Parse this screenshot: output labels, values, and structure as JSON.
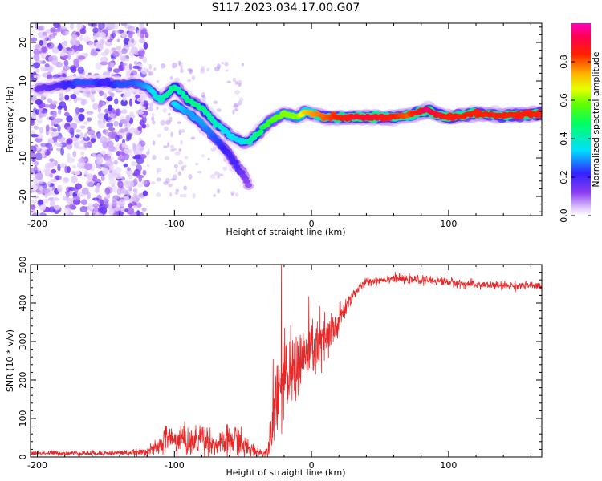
{
  "figure_title": "S117.2023.034.17.00.G07",
  "colors": {
    "snr_line": "#e82828",
    "axes": "#000000"
  },
  "chart_data": [
    {
      "type": "heatmap",
      "xlabel": "Height of straight line (km)",
      "ylabel": "Frequency (Hz)",
      "xlim": [
        -205,
        168
      ],
      "ylim": [
        -25,
        25
      ],
      "x_ticks": [
        -200,
        -100,
        0,
        100
      ],
      "y_ticks": [
        -20,
        -10,
        0,
        10,
        20
      ],
      "colorbar": {
        "label": "Normalized spectral amplitude",
        "range": [
          0,
          1
        ],
        "ticks": [
          "0.0",
          "0.2",
          "0.4",
          "0.6",
          "0.8"
        ],
        "colormap": "rainbow (white-purple-blue-cyan-green-yellow-red-magenta)"
      },
      "ridge": {
        "x": [
          -200,
          -180,
          -170,
          -160,
          -150,
          -140,
          -130,
          -120,
          -110,
          -100,
          -95,
          -90,
          -80,
          -70,
          -60,
          -50,
          -45,
          -40,
          -35,
          -30,
          -20,
          -10,
          -5,
          0,
          10,
          20,
          40,
          60,
          70,
          80,
          85,
          90,
          100,
          110,
          120,
          140,
          168
        ],
        "y": [
          8,
          9,
          9.5,
          9.5,
          9.5,
          9,
          9.5,
          8.5,
          5,
          8.5,
          7,
          5,
          3,
          -1,
          -4,
          -6,
          -5.5,
          -4,
          -2,
          -0.5,
          1.5,
          0.5,
          2,
          1.5,
          0.5,
          0.5,
          0.5,
          0.5,
          1,
          2,
          2.5,
          1.5,
          0.5,
          1,
          1.5,
          1,
          1.5
        ],
        "amplitude": [
          0.15,
          0.2,
          0.25,
          0.25,
          0.2,
          0.25,
          0.25,
          0.3,
          0.4,
          0.45,
          0.4,
          0.45,
          0.45,
          0.4,
          0.35,
          0.35,
          0.4,
          0.45,
          0.5,
          0.55,
          0.6,
          0.6,
          0.7,
          0.75,
          0.8,
          0.85,
          0.9,
          0.85,
          0.8,
          0.9,
          0.95,
          0.9,
          0.85,
          0.85,
          0.85,
          0.85,
          0.85
        ]
      },
      "branch": {
        "x": [
          -100,
          -90,
          -80,
          -70,
          -60,
          -55,
          -50,
          -45
        ],
        "y": [
          4,
          2,
          -1,
          -5,
          -9,
          -12,
          -14,
          -18
        ],
        "amplitude": [
          0.35,
          0.3,
          0.3,
          0.25,
          0.2,
          0.2,
          0.15,
          0.1
        ]
      },
      "noise_region_x": [
        -205,
        -120
      ]
    },
    {
      "type": "line",
      "xlabel": "Height of straight line (km)",
      "ylabel": "SNR (10 * v/v)",
      "xlim": [
        -205,
        168
      ],
      "ylim": [
        0,
        500
      ],
      "x_ticks": [
        -200,
        -100,
        0,
        100
      ],
      "y_ticks": [
        0,
        100,
        200,
        300,
        400,
        500
      ],
      "envelope": {
        "x": [
          -205,
          -150,
          -125,
          -115,
          -110,
          -105,
          -100,
          -95,
          -90,
          -85,
          -80,
          -75,
          -70,
          -65,
          -60,
          -55,
          -50,
          -45,
          -40,
          -35,
          -32,
          -30,
          -28,
          -25,
          -22,
          -20,
          -15,
          -10,
          -5,
          0,
          5,
          10,
          15,
          20,
          25,
          30,
          35,
          40,
          50,
          60,
          70,
          80,
          90,
          100,
          110,
          120,
          140,
          168
        ],
        "mean": [
          10,
          10,
          12,
          20,
          30,
          55,
          40,
          50,
          35,
          40,
          55,
          40,
          30,
          35,
          40,
          45,
          30,
          20,
          15,
          10,
          15,
          70,
          120,
          180,
          170,
          190,
          220,
          240,
          260,
          280,
          290,
          300,
          320,
          350,
          390,
          420,
          440,
          455,
          460,
          465,
          460,
          460,
          458,
          455,
          450,
          448,
          445,
          445
        ],
        "spread": [
          6,
          6,
          8,
          15,
          25,
          40,
          30,
          40,
          30,
          35,
          45,
          35,
          25,
          30,
          40,
          45,
          30,
          20,
          15,
          10,
          15,
          50,
          90,
          100,
          100,
          100,
          90,
          90,
          80,
          80,
          70,
          70,
          60,
          40,
          25,
          15,
          12,
          10,
          10,
          10,
          10,
          10,
          10,
          10,
          10,
          10,
          10,
          10
        ]
      },
      "peak": {
        "x": -22,
        "y": 500
      }
    }
  ]
}
